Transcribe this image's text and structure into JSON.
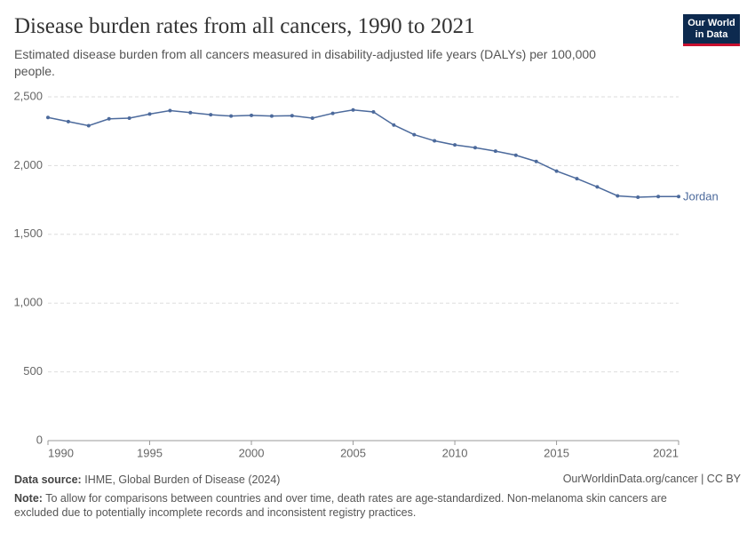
{
  "chart_data": {
    "type": "line",
    "title": "Disease burden rates from all cancers, 1990 to 2021",
    "subtitle": "Estimated disease burden from all cancers measured in disability-adjusted life years (DALYs) per 100,000 people.",
    "logo": [
      "Our World",
      "in Data"
    ],
    "x": [
      1990,
      1991,
      1992,
      1993,
      1994,
      1995,
      1996,
      1997,
      1998,
      1999,
      2000,
      2001,
      2002,
      2003,
      2004,
      2005,
      2006,
      2007,
      2008,
      2009,
      2010,
      2011,
      2012,
      2013,
      2014,
      2015,
      2016,
      2017,
      2018,
      2019,
      2020,
      2021
    ],
    "series": [
      {
        "name": "Jordan",
        "color": "#4c6a9c",
        "values": [
          2350,
          2320,
          2290,
          2340,
          2345,
          2375,
          2400,
          2385,
          2370,
          2360,
          2365,
          2360,
          2363,
          2345,
          2380,
          2405,
          2390,
          2295,
          2225,
          2180,
          2150,
          2130,
          2105,
          2075,
          2030,
          1960,
          1905,
          1845,
          1780,
          1770,
          1775,
          1775
        ]
      }
    ],
    "xlim": [
      1990,
      2021
    ],
    "xticks": [
      1990,
      1995,
      2000,
      2005,
      2010,
      2015,
      2021
    ],
    "ylim": [
      0,
      2500
    ],
    "yticks": [
      0,
      500,
      {
        "value": 1000,
        "label": "1,000"
      },
      {
        "value": 1500,
        "label": "1,500"
      },
      {
        "value": 2000,
        "label": "2,000"
      },
      {
        "value": 2500,
        "label": "2,500"
      }
    ],
    "grid": true,
    "source_label": "Data source:",
    "source": "IHME, Global Burden of Disease (2024)",
    "url": "OurWorldinData.org/cancer | CC BY",
    "note_label": "Note:",
    "note": "To allow for comparisons between countries and over time, death rates are age-standardized. Non-melanoma skin cancers are excluded due to potentially incomplete records and inconsistent registry practices."
  }
}
